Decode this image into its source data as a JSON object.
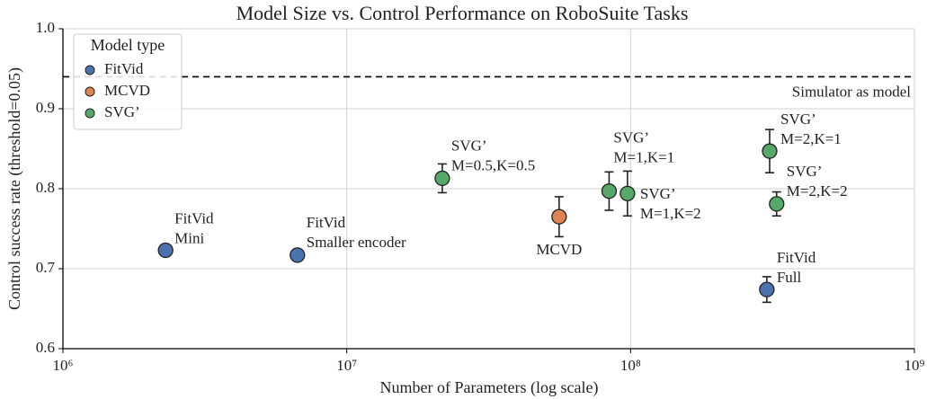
{
  "chart_data": {
    "type": "scatter",
    "title": "Model Size vs. Control Performance on RoboSuite Tasks",
    "x_label": "Number of Parameters (log scale)",
    "y_label": "Control success rate (threshold=0.05)",
    "x_scale": "log",
    "xlim": [
      1000000,
      1000000000
    ],
    "xticks": [
      {
        "value": 1000000,
        "label": "10⁶"
      },
      {
        "value": 10000000,
        "label": "10⁷"
      },
      {
        "value": 100000000,
        "label": "10⁸"
      },
      {
        "value": 1000000000,
        "label": "10⁹"
      }
    ],
    "ylim": [
      0.6,
      1.0
    ],
    "yticks": [
      0.6,
      0.7,
      0.8,
      0.9,
      {
        "value": 1.0,
        "label": "1.0"
      }
    ],
    "grid": true,
    "legend": {
      "title": "Model type",
      "position": "upper left"
    },
    "reference_line": {
      "value": 0.94,
      "label": "Simulator as model"
    },
    "series": [
      {
        "name": "FitVid",
        "color": "#4c72b0",
        "x": [
          2300000,
          6700000,
          302000000
        ],
        "values": [
          0.723,
          0.717,
          0.674
        ],
        "errors": [
          0.005,
          0.005,
          0.016
        ],
        "annotations": [
          [
            "FitVid",
            "Mini"
          ],
          [
            "FitVid",
            "Smaller encoder"
          ],
          [
            "FitVid",
            "Full"
          ]
        ]
      },
      {
        "name": "MCVD",
        "color": "#dd8452",
        "x": [
          56000000
        ],
        "values": [
          0.765
        ],
        "errors": [
          0.025
        ],
        "annotations": [
          [
            "MCVD"
          ]
        ]
      },
      {
        "name": "SVG’",
        "color": "#55a868",
        "x": [
          21700000,
          84000000,
          97500000,
          309000000,
          327000000
        ],
        "values": [
          0.813,
          0.797,
          0.794,
          0.847,
          0.781
        ],
        "errors": [
          0.018,
          0.024,
          0.028,
          0.027,
          0.015
        ],
        "annotations": [
          [
            "SVG’",
            "M=0.5,K=0.5"
          ],
          [
            "SVG’",
            "M=1,K=1"
          ],
          [
            "SVG’",
            "M=1,K=2"
          ],
          [
            "SVG’",
            "M=2,K=1"
          ],
          [
            "SVG’",
            "M=2,K=2"
          ]
        ]
      }
    ]
  }
}
